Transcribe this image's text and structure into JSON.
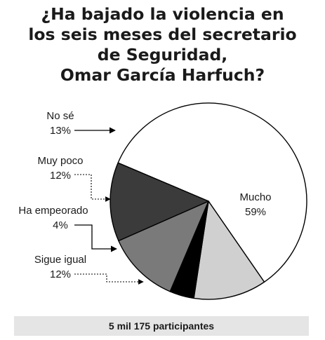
{
  "chart_data": {
    "type": "pie",
    "title_lines": [
      "¿Ha bajado la violencia en",
      "los seis meses del secretario",
      "de Seguridad,",
      "Omar García Harfuch?"
    ],
    "slices": [
      {
        "label": "Mucho",
        "value": 59,
        "value_label": "59%",
        "color": "#ffffff"
      },
      {
        "label": "Sigue igual",
        "value": 12,
        "value_label": "12%",
        "color": "#d0d0d0"
      },
      {
        "label": "Ha empeorado",
        "value": 4,
        "value_label": "4%",
        "color": "#000000"
      },
      {
        "label": "Muy poco",
        "value": 12,
        "value_label": "12%",
        "color": "#7a7a7a"
      },
      {
        "label": "No sé",
        "value": 13,
        "value_label": "13%",
        "color": "#3b3b3b"
      }
    ],
    "footer": "5 mil 175 participantes"
  }
}
